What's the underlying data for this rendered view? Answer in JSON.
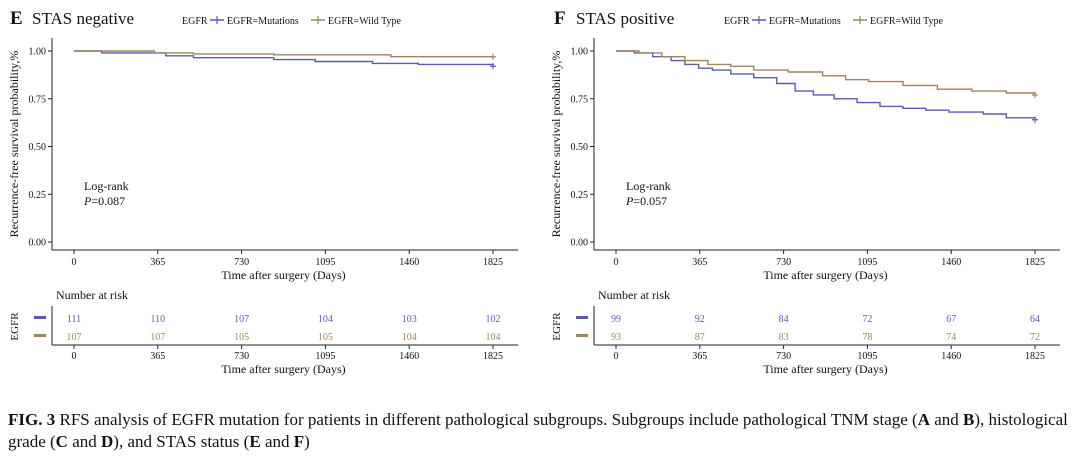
{
  "caption": {
    "label": "FIG. 3",
    "text_1": " RFS analysis of EGFR mutation for patients in different pathological subgroups. Subgroups include pathological TNM stage (",
    "A": "A",
    "and_1": " and ",
    "B": "B",
    "text_2": "), histological grade (",
    "C": "C",
    "and_2": " and ",
    "D": "D",
    "text_3": "), and STAS status (",
    "E": "E",
    "and_3": " and ",
    "F": "F",
    "text_4": ")"
  },
  "colors": {
    "mutations": "#5b5bb0",
    "wild_type": "#a0845c"
  },
  "chart_data": [
    {
      "type": "line",
      "panel": "E",
      "title": "STAS negative",
      "legend": {
        "title": "EGFR",
        "entries": [
          "EGFR=Mutations",
          "EGFR=Wild Type"
        ]
      },
      "xlabel": "Time after surgery (Days)",
      "ylabel": "Recurrence-free survival probability,%",
      "x_ticks": [
        0,
        365,
        730,
        1095,
        1460,
        1825
      ],
      "y_ticks": [
        "0.00",
        "0.25",
        "0.50",
        "0.75",
        "1.00"
      ],
      "xlim": [
        0,
        1825
      ],
      "ylim": [
        0,
        1
      ],
      "annotation": {
        "test": "Log-rank",
        "p_label": "P",
        "p_value": "=0.087"
      },
      "series": [
        {
          "name": "EGFR=Mutations",
          "x": [
            0,
            120,
            400,
            520,
            870,
            1050,
            1300,
            1500,
            1825
          ],
          "y": [
            1.0,
            0.99,
            0.975,
            0.965,
            0.955,
            0.945,
            0.935,
            0.93,
            0.92
          ]
        },
        {
          "name": "EGFR=Wild Type",
          "x": [
            0,
            350,
            520,
            870,
            1380,
            1825
          ],
          "y": [
            1.0,
            0.99,
            0.985,
            0.98,
            0.97,
            0.97
          ]
        }
      ],
      "risk_table": {
        "title": "Number at risk",
        "row_label": "EGFR",
        "rows": [
          {
            "name": "EGFR=Mutations",
            "values": [
              111,
              110,
              107,
              104,
              103,
              102
            ]
          },
          {
            "name": "EGFR=Wild Type",
            "values": [
              107,
              107,
              105,
              105,
              104,
              104
            ]
          }
        ]
      }
    },
    {
      "type": "line",
      "panel": "F",
      "title": "STAS positive",
      "legend": {
        "title": "EGFR",
        "entries": [
          "EGFR=Mutations",
          "EGFR=Wild Type"
        ]
      },
      "xlabel": "Time after surgery (Days)",
      "ylabel": "Recurrence-free survival probability,%",
      "x_ticks": [
        0,
        365,
        730,
        1095,
        1460,
        1825
      ],
      "y_ticks": [
        "0.00",
        "0.25",
        "0.50",
        "0.75",
        "1.00"
      ],
      "xlim": [
        0,
        1825
      ],
      "ylim": [
        0,
        1
      ],
      "annotation": {
        "test": "Log-rank",
        "p_label": "P",
        "p_value": "=0.057"
      },
      "series": [
        {
          "name": "EGFR=Mutations",
          "x": [
            0,
            80,
            160,
            240,
            300,
            360,
            420,
            500,
            600,
            700,
            780,
            860,
            950,
            1050,
            1150,
            1250,
            1350,
            1450,
            1600,
            1700,
            1825
          ],
          "y": [
            1.0,
            0.99,
            0.97,
            0.95,
            0.93,
            0.91,
            0.9,
            0.88,
            0.86,
            0.83,
            0.79,
            0.77,
            0.75,
            0.73,
            0.71,
            0.7,
            0.69,
            0.68,
            0.67,
            0.65,
            0.64
          ]
        },
        {
          "name": "EGFR=Wild Type",
          "x": [
            0,
            100,
            200,
            300,
            400,
            500,
            600,
            750,
            900,
            1000,
            1100,
            1250,
            1400,
            1550,
            1700,
            1825
          ],
          "y": [
            1.0,
            0.99,
            0.97,
            0.95,
            0.93,
            0.92,
            0.9,
            0.89,
            0.87,
            0.85,
            0.84,
            0.82,
            0.8,
            0.79,
            0.78,
            0.77
          ]
        }
      ],
      "risk_table": {
        "title": "Number at risk",
        "row_label": "EGFR",
        "rows": [
          {
            "name": "EGFR=Mutations",
            "values": [
              99,
              92,
              84,
              72,
              67,
              64
            ]
          },
          {
            "name": "EGFR=Wild Type",
            "values": [
              93,
              87,
              83,
              78,
              74,
              72
            ]
          }
        ]
      }
    }
  ]
}
